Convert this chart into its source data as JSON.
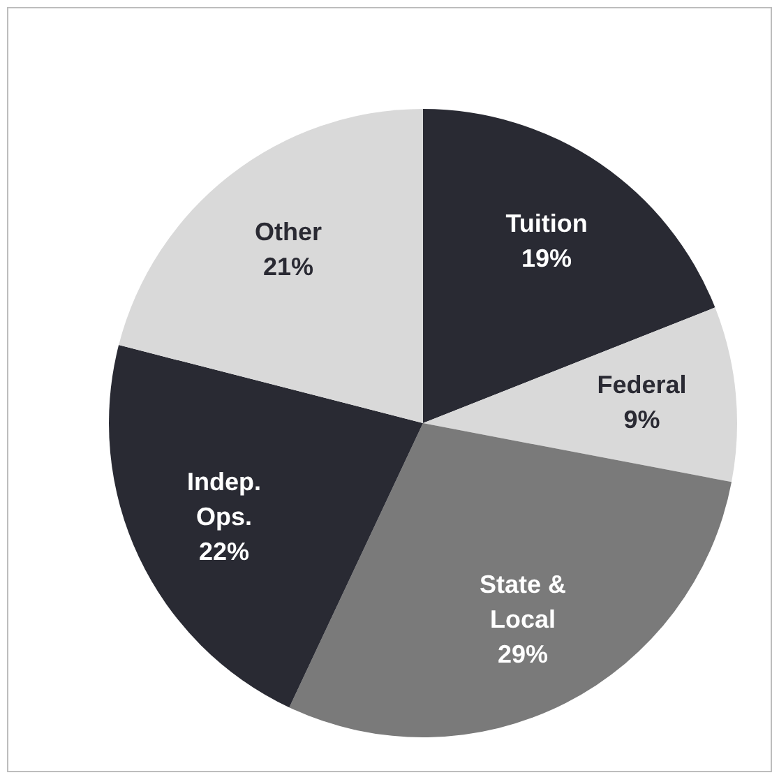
{
  "chart_data": {
    "type": "pie",
    "categories": [
      "Tuition",
      "Federal",
      "State & Local",
      "Indep. Ops.",
      "Other"
    ],
    "values": [
      19,
      9,
      29,
      22,
      21
    ],
    "value_labels": [
      "19%",
      "9%",
      "29%",
      "22%",
      "21%"
    ],
    "colors": [
      "#292a33",
      "#d9d9d9",
      "#7a7a7a",
      "#292a33",
      "#d9d9d9"
    ],
    "legend": false
  }
}
